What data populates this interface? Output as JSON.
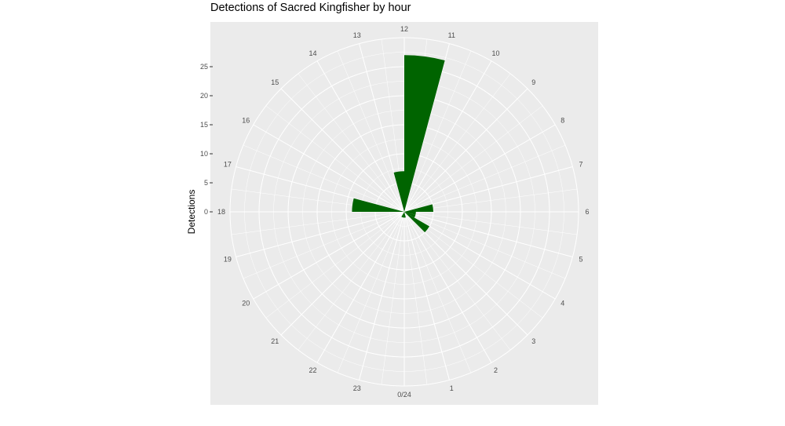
{
  "chart_data": {
    "type": "bar",
    "coord": "polar",
    "title": "Detections of Sacred Kingfisher by hour",
    "ylabel": "Detections",
    "xlabel": "",
    "ylim": [
      0,
      30
    ],
    "yticks": [
      0,
      5,
      10,
      15,
      20,
      25
    ],
    "categories": [
      "0/24",
      "1",
      "2",
      "3",
      "4",
      "5",
      "6",
      "7",
      "8",
      "9",
      "10",
      "11",
      "12",
      "13",
      "14",
      "15",
      "16",
      "17",
      "18",
      "19",
      "20",
      "21",
      "22",
      "23"
    ],
    "values": [
      1,
      1,
      0,
      0,
      5,
      2,
      2,
      5,
      0,
      0,
      0,
      0,
      27,
      7,
      0,
      0,
      0,
      0,
      9,
      0,
      0,
      0,
      0,
      1
    ],
    "bar_color": "#006400",
    "panel_color": "#ebebeb",
    "grid_color": "#ffffff",
    "grid": true
  }
}
